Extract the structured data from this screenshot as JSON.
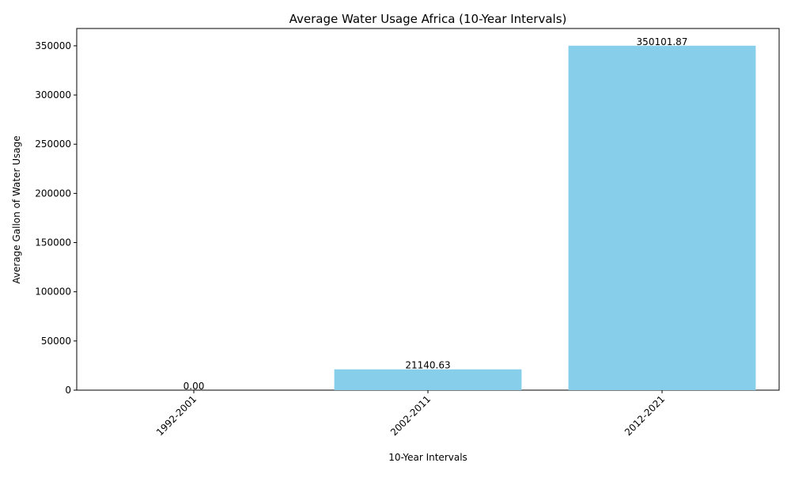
{
  "chart_data": {
    "type": "bar",
    "title": "Average Water Usage Africa (10-Year Intervals)",
    "xlabel": "10-Year Intervals",
    "ylabel": "Average Gallon of Water Usage",
    "categories": [
      "1992-2001",
      "2002-2011",
      "2012-2021"
    ],
    "values": [
      0.0,
      21140.63,
      350101.87
    ],
    "data_labels": [
      "0.00",
      "21140.63",
      "350101.87"
    ],
    "ylim": [
      0,
      367607
    ],
    "yticks": [
      0,
      50000,
      100000,
      150000,
      200000,
      250000,
      300000,
      350000
    ],
    "x_tick_rotation_deg": 45,
    "bar_color": "#87ceeb",
    "grid": false,
    "legend": "none"
  }
}
